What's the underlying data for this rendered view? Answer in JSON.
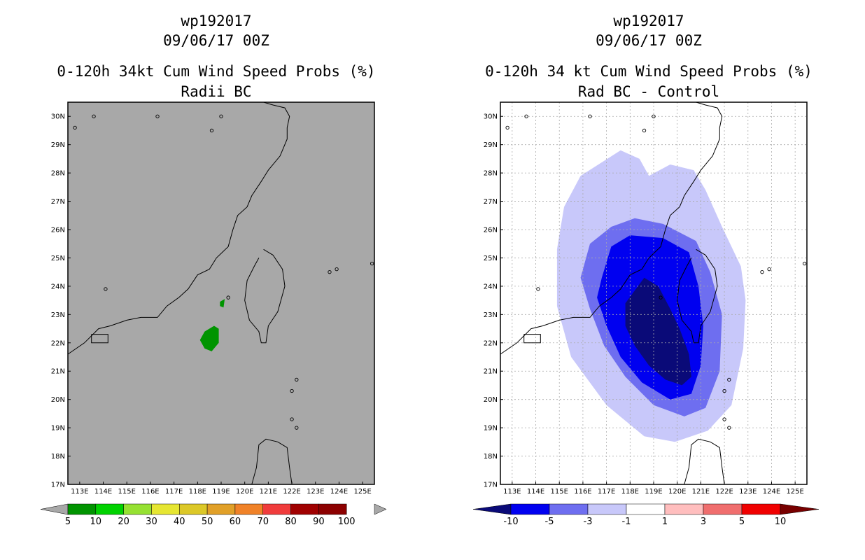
{
  "chart_data": [
    {
      "type": "map",
      "title_lines": [
        "wp192017",
        "09/06/17 00Z",
        "0-120h 34kt Cum Wind Speed Probs (%)",
        "Radii BC"
      ],
      "background": "#a8a8a8",
      "grid": false,
      "lon_range": [
        112.5,
        125.5
      ],
      "lat_range": [
        17,
        30.5
      ],
      "lon_ticks": [
        "113E",
        "114E",
        "115E",
        "116E",
        "117E",
        "118E",
        "119E",
        "120E",
        "121E",
        "122E",
        "123E",
        "124E",
        "125E"
      ],
      "lat_ticks": [
        "17N",
        "18N",
        "19N",
        "20N",
        "21N",
        "22N",
        "23N",
        "24N",
        "25N",
        "26N",
        "27N",
        "28N",
        "29N",
        "30N"
      ],
      "colorbar": {
        "labels": [
          "5",
          "10",
          "20",
          "30",
          "40",
          "50",
          "60",
          "70",
          "80",
          "90",
          "100"
        ],
        "colors": [
          "#009400",
          "#00d200",
          "#96e132",
          "#e6e632",
          "#dcc828",
          "#e1a028",
          "#f08228",
          "#f03c3c",
          "#a00000",
          "#8c0000",
          "#9600e6"
        ]
      },
      "probability_areas": [
        {
          "level": "5-10",
          "color": "#009400",
          "points": [
            [
              118.3,
              22.4
            ],
            [
              118.7,
              22.6
            ],
            [
              118.9,
              22.5
            ],
            [
              118.9,
              22.0
            ],
            [
              118.6,
              21.7
            ],
            [
              118.3,
              21.8
            ],
            [
              118.1,
              22.1
            ]
          ]
        },
        {
          "level": "5-10",
          "color": "#009400",
          "points": [
            [
              118.95,
              23.45
            ],
            [
              119.15,
              23.55
            ],
            [
              119.1,
              23.25
            ],
            [
              118.95,
              23.3
            ]
          ]
        }
      ]
    },
    {
      "type": "map",
      "title_lines": [
        "wp192017",
        "09/06/17 00Z",
        "0-120h 34 kt Cum Wind Speed Probs (%)",
        "Rad BC - Control"
      ],
      "background": "#ffffff",
      "grid": true,
      "lon_range": [
        112.5,
        125.5
      ],
      "lat_range": [
        17,
        30.5
      ],
      "lon_ticks": [
        "113E",
        "114E",
        "115E",
        "116E",
        "117E",
        "118E",
        "119E",
        "120E",
        "121E",
        "122E",
        "123E",
        "124E",
        "125E"
      ],
      "lat_ticks": [
        "17N",
        "18N",
        "19N",
        "20N",
        "21N",
        "22N",
        "23N",
        "24N",
        "25N",
        "26N",
        "27N",
        "28N",
        "29N",
        "30N"
      ],
      "colorbar": {
        "labels": [
          "-10",
          "-5",
          "-3",
          "-1",
          "1",
          "3",
          "5",
          "10"
        ],
        "colors": [
          "#0a0a78",
          "#0000f0",
          "#6e6ef0",
          "#c8c8fa",
          "#ffffff",
          "#ffbebe",
          "#f06e6e",
          "#f00000",
          "#780000"
        ]
      },
      "difference_areas": [
        {
          "level": "-3 to -1",
          "color": "#c8c8fa",
          "points": [
            [
              115.2,
              26.8
            ],
            [
              115.9,
              27.9
            ],
            [
              117.6,
              28.8
            ],
            [
              118.4,
              28.5
            ],
            [
              118.8,
              27.9
            ],
            [
              119.7,
              28.3
            ],
            [
              120.7,
              28.1
            ],
            [
              121.2,
              27.4
            ],
            [
              121.9,
              26.1
            ],
            [
              122.7,
              24.7
            ],
            [
              122.9,
              23.5
            ],
            [
              122.8,
              21.8
            ],
            [
              122.3,
              19.8
            ],
            [
              121.3,
              18.9
            ],
            [
              119.9,
              18.5
            ],
            [
              118.6,
              18.7
            ],
            [
              117.0,
              19.8
            ],
            [
              115.5,
              21.5
            ],
            [
              114.9,
              23.3
            ],
            [
              114.9,
              25.3
            ]
          ]
        },
        {
          "level": "-5 to -3",
          "color": "#6e6ef0",
          "points": [
            [
              116.3,
              25.5
            ],
            [
              117.2,
              26.1
            ],
            [
              118.2,
              26.4
            ],
            [
              119.4,
              26.2
            ],
            [
              120.8,
              25.6
            ],
            [
              121.4,
              24.5
            ],
            [
              121.9,
              23.0
            ],
            [
              121.8,
              21.0
            ],
            [
              121.2,
              19.7
            ],
            [
              120.3,
              19.4
            ],
            [
              119.0,
              19.8
            ],
            [
              117.8,
              20.8
            ],
            [
              116.9,
              21.9
            ],
            [
              116.3,
              23.2
            ],
            [
              115.9,
              24.3
            ]
          ]
        },
        {
          "level": "-10 to -5",
          "color": "#0000f0",
          "points": [
            [
              116.8,
              24.3
            ],
            [
              117.2,
              25.4
            ],
            [
              118.0,
              25.8
            ],
            [
              119.4,
              25.7
            ],
            [
              120.5,
              25.2
            ],
            [
              120.9,
              24.0
            ],
            [
              121.1,
              22.6
            ],
            [
              121.0,
              21.2
            ],
            [
              120.6,
              20.2
            ],
            [
              119.7,
              20.0
            ],
            [
              118.5,
              20.6
            ],
            [
              117.6,
              21.5
            ],
            [
              117.0,
              22.6
            ],
            [
              116.6,
              23.6
            ]
          ]
        },
        {
          "level": "< -10",
          "color": "#0a0a78",
          "points": [
            [
              117.8,
              23.4
            ],
            [
              118.6,
              24.3
            ],
            [
              119.2,
              24.0
            ],
            [
              119.7,
              23.2
            ],
            [
              120.1,
              22.5
            ],
            [
              120.5,
              21.6
            ],
            [
              120.6,
              20.8
            ],
            [
              120.2,
              20.5
            ],
            [
              119.5,
              20.7
            ],
            [
              118.8,
              21.2
            ],
            [
              118.2,
              21.9
            ],
            [
              117.8,
              22.6
            ]
          ]
        }
      ]
    }
  ]
}
